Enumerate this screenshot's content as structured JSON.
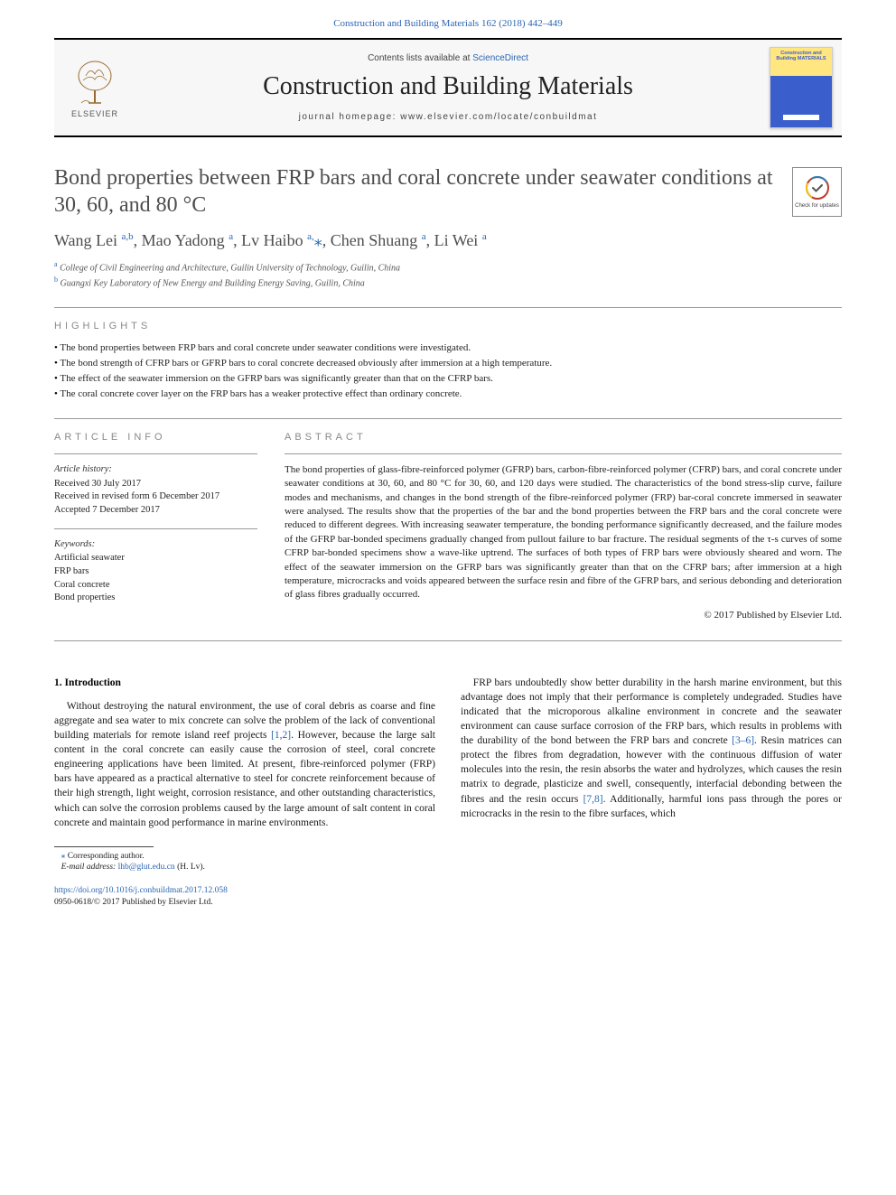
{
  "header": {
    "citation": "Construction and Building Materials 162 (2018) 442–449",
    "contents_prefix": "Contents lists available at ",
    "contents_link": "ScienceDirect",
    "journal_title": "Construction and Building Materials",
    "homepage_prefix": "journal homepage: ",
    "homepage_url": "www.elsevier.com/locate/conbuildmat",
    "publisher_name": "ELSEVIER",
    "cover_title": "Construction and Building MATERIALS"
  },
  "article": {
    "title": "Bond properties between FRP bars and coral concrete under seawater conditions at 30, 60, and 80 °C",
    "crossmark_text": "Check for updates",
    "authors_html": "Wang Lei <sup>a,b</sup>, Mao Yadong <sup>a</sup>, Lv Haibo <sup>a,</sup><span class='corr'>⁎</span>, Chen Shuang <sup>a</sup>, Li Wei <sup>a</sup>",
    "affiliations": [
      {
        "key": "a",
        "text": "College of Civil Engineering and Architecture, Guilin University of Technology, Guilin, China"
      },
      {
        "key": "b",
        "text": "Guangxi Key Laboratory of New Energy and Building Energy Saving, Guilin, China"
      }
    ]
  },
  "highlights": {
    "label": "highlights",
    "items": [
      "The bond properties between FRP bars and coral concrete under seawater conditions were investigated.",
      "The bond strength of CFRP bars or GFRP bars to coral concrete decreased obviously after immersion at a high temperature.",
      "The effect of the seawater immersion on the GFRP bars was significantly greater than that on the CFRP bars.",
      "The coral concrete cover layer on the FRP bars has a weaker protective effect than ordinary concrete."
    ]
  },
  "article_info": {
    "label": "article info",
    "history_label": "Article history:",
    "history": [
      "Received 30 July 2017",
      "Received in revised form 6 December 2017",
      "Accepted 7 December 2017"
    ],
    "keywords_label": "Keywords:",
    "keywords": [
      "Artificial seawater",
      "FRP bars",
      "Coral concrete",
      "Bond properties"
    ]
  },
  "abstract": {
    "label": "abstract",
    "text": "The bond properties of glass-fibre-reinforced polymer (GFRP) bars, carbon-fibre-reinforced polymer (CFRP) bars, and coral concrete under seawater conditions at 30, 60, and 80 °C for 30, 60, and 120 days were studied. The characteristics of the bond stress-slip curve, failure modes and mechanisms, and changes in the bond strength of the fibre-reinforced polymer (FRP) bar-coral concrete immersed in seawater were analysed. The results show that the properties of the bar and the bond properties between the FRP bars and the coral concrete were reduced to different degrees. With increasing seawater temperature, the bonding performance significantly decreased, and the failure modes of the GFRP bar-bonded specimens gradually changed from pullout failure to bar fracture. The residual segments of the τ-s curves of some CFRP bar-bonded specimens show a wave-like uptrend. The surfaces of both types of FRP bars were obviously sheared and worn. The effect of the seawater immersion on the GFRP bars was significantly greater than that on the CFRP bars; after immersion at a high temperature, microcracks and voids appeared between the surface resin and fibre of the GFRP bars, and serious debonding and deterioration of glass fibres gradually occurred.",
    "copyright": "© 2017 Published by Elsevier Ltd."
  },
  "body": {
    "section_heading": "1. Introduction",
    "para1_pre": "Without destroying the natural environment, the use of coral debris as coarse and fine aggregate and sea water to mix concrete can solve the problem of the lack of conventional building materials for remote island reef projects ",
    "ref12": "[1,2]",
    "para1_post": ". However, because the large salt content in the coral concrete can easily cause the corrosion of steel, coral concrete engineering applications have been limited. At present, fibre-reinforced polymer (FRP) bars have appeared as a practical alternative to steel for concrete reinforcement because of their high strength, light weight, corrosion resistance, and other outstanding characteristics, which can solve the corrosion problems caused by the large amount of salt content in coral concrete and maintain good performance in marine environments.",
    "para2_pre": "FRP bars undoubtedly show better durability in the harsh marine environment, but this advantage does not imply that their performance is completely undegraded. Studies have indicated that the microporous alkaline environment in concrete and the seawater environment can cause surface corrosion of the FRP bars, which results in problems with the durability of the bond between the FRP bars and concrete ",
    "ref36": "[3–6]",
    "para2_mid": ". Resin matrices can protect the fibres from degradation, however with the continuous diffusion of water molecules into the resin, the resin absorbs the water and hydrolyzes, which causes the resin matrix to degrade, plasticize and swell, consequently, interfacial debonding between the fibres and the resin occurs ",
    "ref78": "[7,8]",
    "para2_post": ". Additionally, harmful ions pass through the pores or microcracks in the resin to the fibre surfaces, which"
  },
  "footnote": {
    "marker": "⁎",
    "label": "Corresponding author.",
    "email_label": "E-mail address:",
    "email": "lhb@glut.edu.cn",
    "email_name": "(H. Lv)."
  },
  "footer": {
    "doi": "https://doi.org/10.1016/j.conbuildmat.2017.12.058",
    "issn_line": "0950-0618/© 2017 Published by Elsevier Ltd."
  },
  "colors": {
    "link": "#2a65b3",
    "text_body": "#1a1a1a",
    "text_muted": "#888888",
    "title_gray": "#4d4d4d"
  }
}
